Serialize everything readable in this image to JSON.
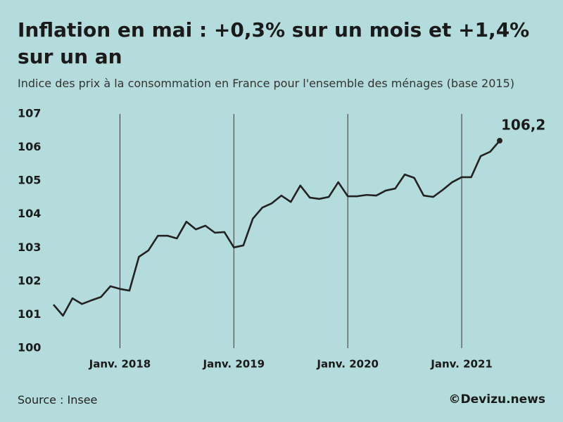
{
  "chart_data": {
    "type": "line",
    "title": "Inflation en mai : +0,3% sur un mois et +1,4% sur un an",
    "subtitle": "Indice des prix à la consommation en France pour l'ensemble des ménages (base 2015)",
    "source": "Source : Insee",
    "credit": "©Devizu.news",
    "categories": [
      null,
      null,
      null,
      null,
      null,
      null,
      null,
      "Janv. 2018",
      null,
      null,
      null,
      null,
      null,
      null,
      null,
      null,
      null,
      null,
      null,
      "Janv. 2019",
      null,
      null,
      null,
      null,
      null,
      null,
      null,
      null,
      null,
      null,
      null,
      "Janv. 2020",
      null,
      null,
      null,
      null,
      null,
      null,
      null,
      null,
      null,
      null,
      null,
      "Janv. 2021",
      null,
      null,
      null,
      null
    ],
    "series": [
      {
        "name": "Indice des prix",
        "color": "#222222",
        "values": [
          101.3,
          100.97,
          101.49,
          101.32,
          101.43,
          101.53,
          101.85,
          101.77,
          101.72,
          102.73,
          102.92,
          103.36,
          103.36,
          103.28,
          103.78,
          103.55,
          103.66,
          103.45,
          103.47,
          103.01,
          103.07,
          103.87,
          104.2,
          104.33,
          104.56,
          104.37,
          104.86,
          104.5,
          104.46,
          104.52,
          104.96,
          104.54,
          104.54,
          104.58,
          104.56,
          104.71,
          104.77,
          105.19,
          105.09,
          104.56,
          104.52,
          104.73,
          104.96,
          105.11,
          105.11,
          105.74,
          105.87,
          106.2
        ],
        "value_labels": [
          null,
          null,
          null,
          null,
          null,
          null,
          null,
          null,
          null,
          null,
          null,
          null,
          null,
          null,
          null,
          null,
          null,
          null,
          null,
          null,
          null,
          null,
          null,
          null,
          null,
          null,
          null,
          null,
          null,
          null,
          null,
          null,
          null,
          null,
          null,
          null,
          null,
          null,
          null,
          null,
          null,
          null,
          null,
          null,
          null,
          null,
          null,
          "106,2"
        ]
      }
    ],
    "ylim": [
      100,
      107
    ],
    "yticks": [
      100,
      101,
      102,
      103,
      104,
      105,
      106,
      107
    ],
    "x_grid": true
  }
}
